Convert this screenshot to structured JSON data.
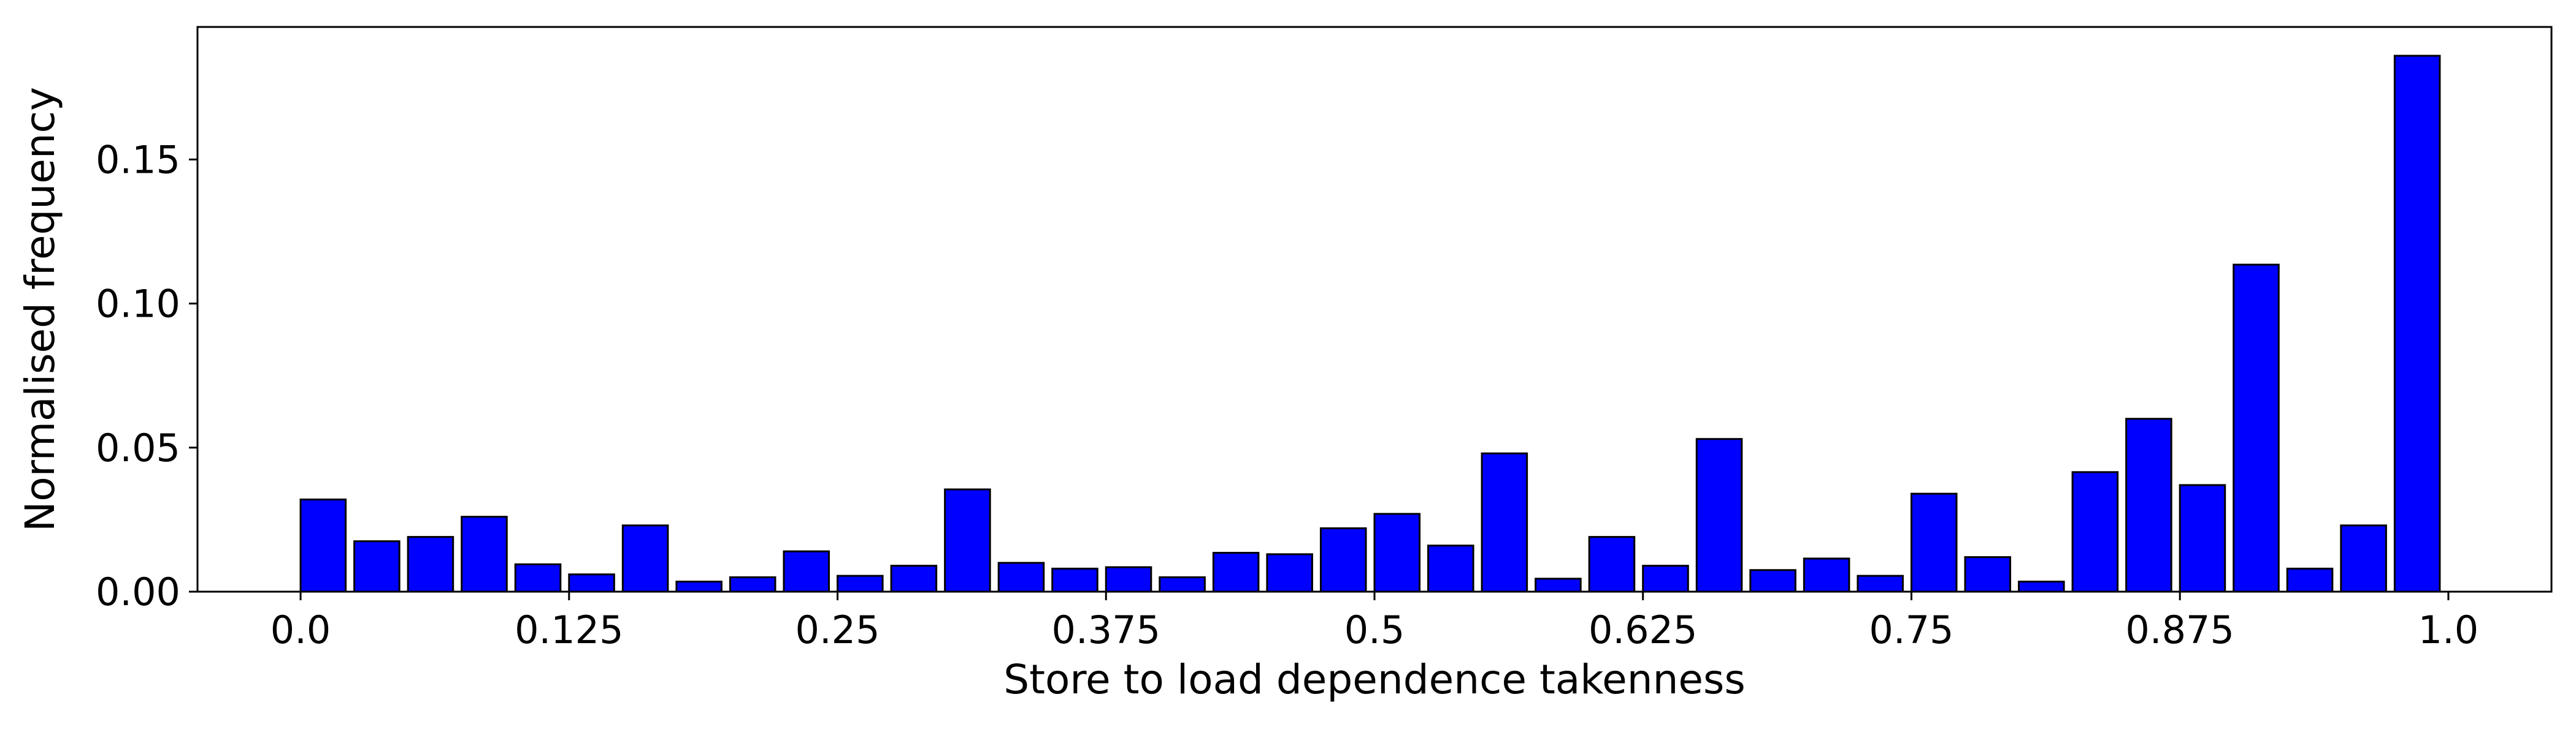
{
  "chart_data": {
    "type": "bar",
    "title": "",
    "xlabel": "Store to load dependence takenness",
    "ylabel": "Normalised frequency",
    "xlim": [
      -0.048,
      1.048
    ],
    "ylim": [
      0,
      0.196
    ],
    "xticks": [
      {
        "value": 0.0,
        "label": "0.0"
      },
      {
        "value": 0.125,
        "label": "0.125"
      },
      {
        "value": 0.25,
        "label": "0.25"
      },
      {
        "value": 0.375,
        "label": "0.375"
      },
      {
        "value": 0.5,
        "label": "0.5"
      },
      {
        "value": 0.625,
        "label": "0.625"
      },
      {
        "value": 0.75,
        "label": "0.75"
      },
      {
        "value": 0.875,
        "label": "0.875"
      },
      {
        "value": 1.0,
        "label": "1.0"
      }
    ],
    "yticks": [
      {
        "value": 0.0,
        "label": "0.00"
      },
      {
        "value": 0.05,
        "label": "0.05"
      },
      {
        "value": 0.1,
        "label": "0.10"
      },
      {
        "value": 0.15,
        "label": "0.15"
      }
    ],
    "bin_width": 0.025,
    "bar_width_fraction": 0.84,
    "x": [
      0.0,
      0.025,
      0.05,
      0.075,
      0.1,
      0.125,
      0.15,
      0.175,
      0.2,
      0.225,
      0.25,
      0.275,
      0.3,
      0.325,
      0.35,
      0.375,
      0.4,
      0.425,
      0.45,
      0.475,
      0.5,
      0.525,
      0.55,
      0.575,
      0.6,
      0.625,
      0.65,
      0.675,
      0.7,
      0.725,
      0.75,
      0.775,
      0.8,
      0.825,
      0.85,
      0.875,
      0.9,
      0.925,
      0.95,
      0.975
    ],
    "values": [
      0.032,
      0.0175,
      0.019,
      0.026,
      0.0095,
      0.006,
      0.023,
      0.0035,
      0.005,
      0.014,
      0.0055,
      0.009,
      0.0355,
      0.01,
      0.008,
      0.0085,
      0.005,
      0.0135,
      0.013,
      0.022,
      0.027,
      0.016,
      0.048,
      0.0045,
      0.019,
      0.009,
      0.053,
      0.0075,
      0.0115,
      0.0055,
      0.034,
      0.012,
      0.0035,
      0.0415,
      0.06,
      0.037,
      0.1135,
      0.008,
      0.023,
      0.186
    ],
    "bar_color": "#0000ff",
    "edge_color": "#000000",
    "grid": false,
    "legend": "none"
  }
}
